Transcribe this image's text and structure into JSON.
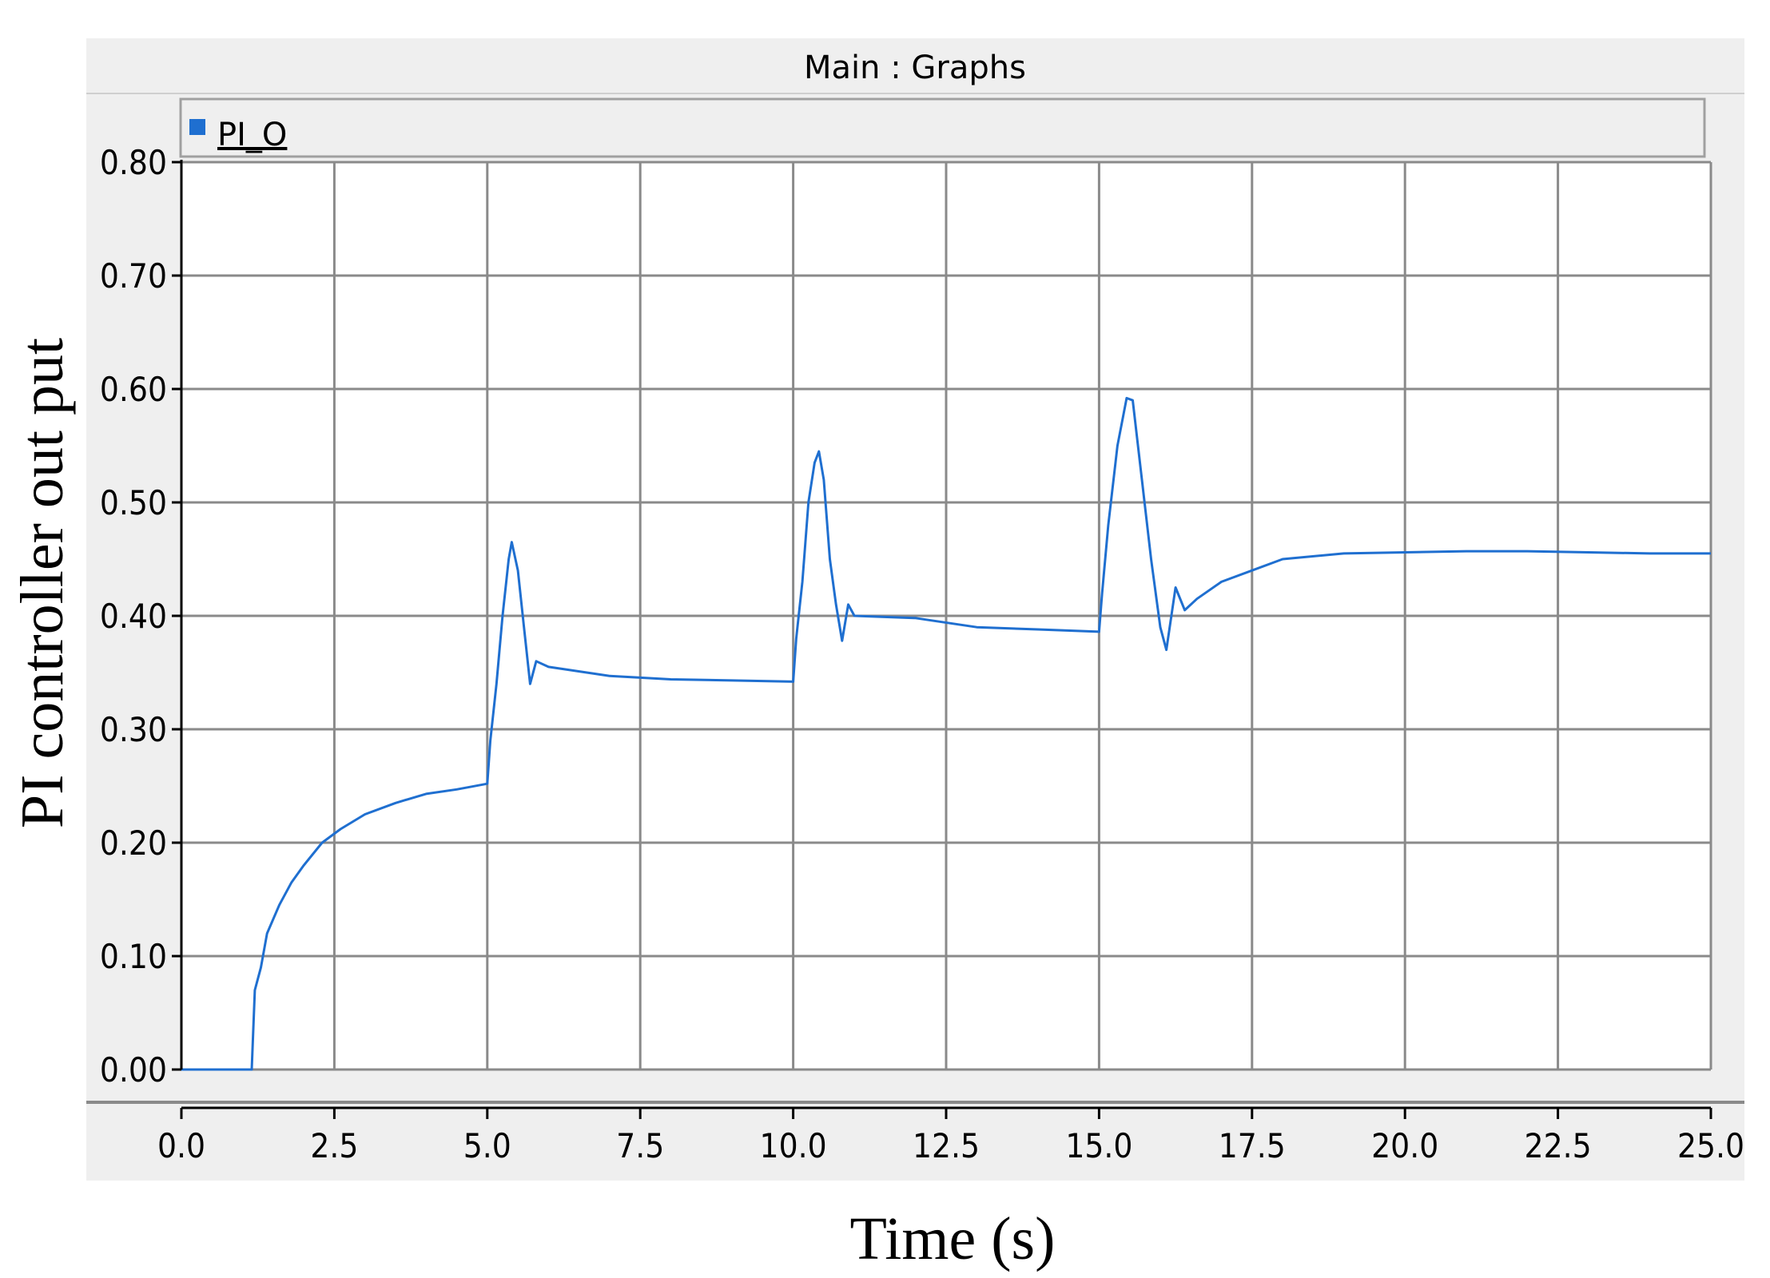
{
  "window": {
    "title": "Main : Graphs"
  },
  "colors": {
    "frame_bg": "#efefef",
    "plot_bg": "#ffffff",
    "grid": "#8a8a8a",
    "series": "#1f6fd0",
    "axis": "#000000"
  },
  "chart_data": {
    "type": "line",
    "title": "Main : Graphs",
    "xlabel": "Time (s)",
    "ylabel": "PI controller out put",
    "xlim": [
      0,
      25
    ],
    "ylim": [
      0,
      0.8
    ],
    "grid": true,
    "legend_position": "top-left",
    "x_ticks": [
      "0.0",
      "2.5",
      "5.0",
      "7.5",
      "10.0",
      "12.5",
      "15.0",
      "17.5",
      "20.0",
      "22.5",
      "25.0"
    ],
    "y_ticks": [
      "0.00",
      "0.10",
      "0.20",
      "0.30",
      "0.40",
      "0.50",
      "0.60",
      "0.70",
      "0.80"
    ],
    "series": [
      {
        "name": "PI_O",
        "color": "#1f6fd0",
        "points": [
          [
            0.0,
            0.0
          ],
          [
            1.15,
            0.0
          ],
          [
            1.2,
            0.07
          ],
          [
            1.3,
            0.09
          ],
          [
            1.4,
            0.12
          ],
          [
            1.6,
            0.145
          ],
          [
            1.8,
            0.165
          ],
          [
            2.0,
            0.18
          ],
          [
            2.3,
            0.2
          ],
          [
            2.6,
            0.212
          ],
          [
            3.0,
            0.225
          ],
          [
            3.5,
            0.235
          ],
          [
            4.0,
            0.243
          ],
          [
            4.5,
            0.247
          ],
          [
            5.0,
            0.252
          ],
          [
            5.05,
            0.29
          ],
          [
            5.15,
            0.34
          ],
          [
            5.25,
            0.4
          ],
          [
            5.35,
            0.45
          ],
          [
            5.4,
            0.465
          ],
          [
            5.5,
            0.44
          ],
          [
            5.6,
            0.39
          ],
          [
            5.7,
            0.34
          ],
          [
            5.8,
            0.36
          ],
          [
            6.0,
            0.355
          ],
          [
            7.0,
            0.347
          ],
          [
            8.0,
            0.344
          ],
          [
            9.0,
            0.343
          ],
          [
            10.0,
            0.342
          ],
          [
            10.05,
            0.38
          ],
          [
            10.15,
            0.43
          ],
          [
            10.25,
            0.5
          ],
          [
            10.35,
            0.535
          ],
          [
            10.42,
            0.545
          ],
          [
            10.5,
            0.52
          ],
          [
            10.6,
            0.45
          ],
          [
            10.7,
            0.41
          ],
          [
            10.8,
            0.378
          ],
          [
            10.9,
            0.41
          ],
          [
            11.0,
            0.4
          ],
          [
            12.0,
            0.398
          ],
          [
            13.0,
            0.39
          ],
          [
            14.0,
            0.388
          ],
          [
            15.0,
            0.386
          ],
          [
            15.05,
            0.42
          ],
          [
            15.15,
            0.48
          ],
          [
            15.3,
            0.55
          ],
          [
            15.45,
            0.592
          ],
          [
            15.55,
            0.59
          ],
          [
            15.7,
            0.52
          ],
          [
            15.85,
            0.45
          ],
          [
            16.0,
            0.39
          ],
          [
            16.1,
            0.37
          ],
          [
            16.25,
            0.425
          ],
          [
            16.4,
            0.405
          ],
          [
            16.6,
            0.415
          ],
          [
            17.0,
            0.43
          ],
          [
            17.5,
            0.44
          ],
          [
            18.0,
            0.45
          ],
          [
            19.0,
            0.455
          ],
          [
            20.0,
            0.456
          ],
          [
            21.0,
            0.457
          ],
          [
            22.0,
            0.457
          ],
          [
            23.0,
            0.456
          ],
          [
            24.0,
            0.455
          ],
          [
            25.0,
            0.455
          ]
        ]
      }
    ]
  }
}
